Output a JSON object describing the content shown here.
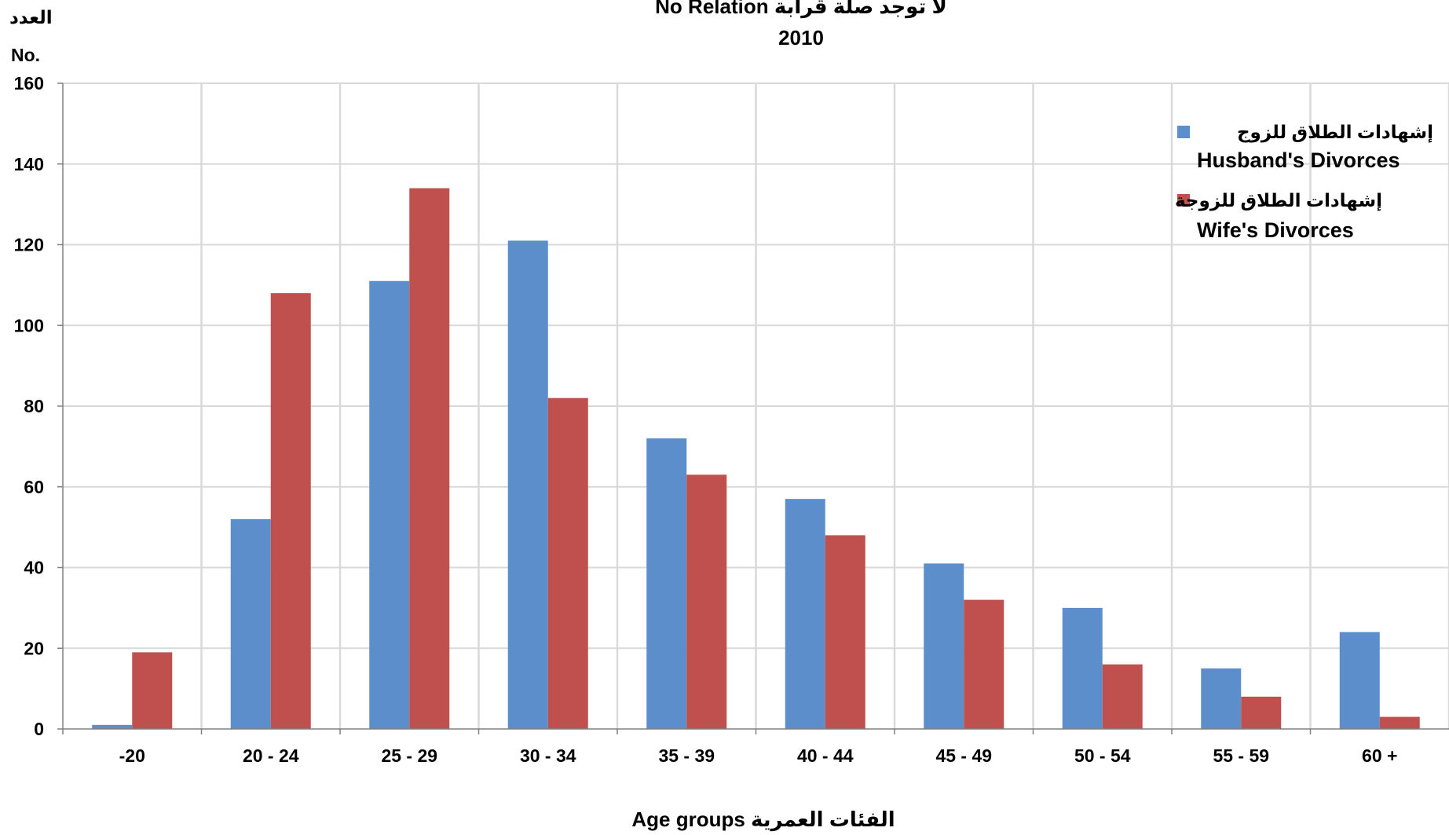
{
  "chart_data": {
    "type": "bar",
    "title_line1": "No Relation  لا توجد صلة قرابة",
    "title_line2": "2010",
    "ylabel_ar": "العدد",
    "ylabel_en": "No.",
    "xlabel": "Age groups الفئات العمرية",
    "ylim": [
      0,
      160
    ],
    "yticks": [
      0,
      20,
      40,
      60,
      80,
      100,
      120,
      140,
      160
    ],
    "grid": true,
    "legend_position": "top-right",
    "categories": [
      "-20",
      "20 - 24",
      "25 - 29",
      "30 - 34",
      "35 - 39",
      "40 - 44",
      "45 - 49",
      "50 - 54",
      "55 - 59",
      "60 +"
    ],
    "series": [
      {
        "name": "Husband's Divorces",
        "name_ar": "إشهادات الطلاق للزوج",
        "color": "#5b8ecb",
        "values": [
          1,
          52,
          111,
          121,
          72,
          57,
          41,
          30,
          15,
          24
        ]
      },
      {
        "name": "Wife's Divorces",
        "name_ar": "إشهادات الطلاق للزوجة",
        "color": "#c0504d",
        "values": [
          19,
          108,
          134,
          82,
          63,
          48,
          32,
          16,
          8,
          3
        ]
      }
    ]
  }
}
